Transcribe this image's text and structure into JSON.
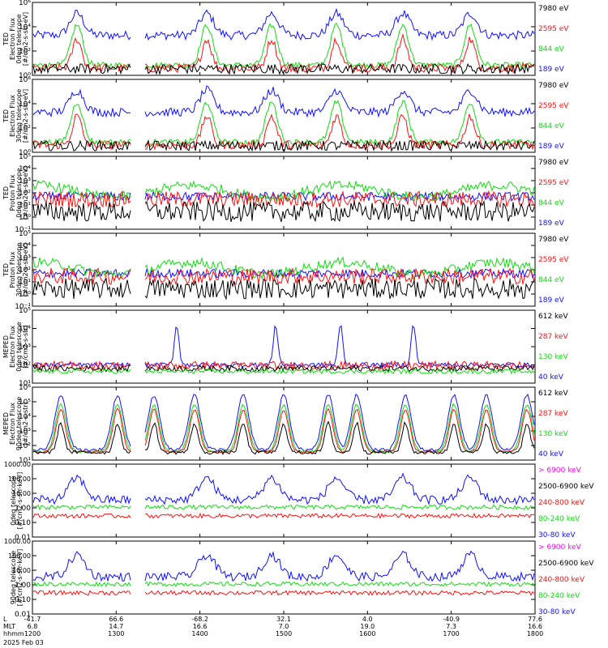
{
  "colors": {
    "black": "#000000",
    "blue": "#1010ff",
    "red": "#ff1010",
    "green": "#10dd10",
    "magenta": "#ff00ff"
  },
  "date_label": "2025 Feb 03",
  "x_axis": {
    "row_labels": [
      "L",
      "MLT",
      "hhmm"
    ],
    "ticks": [
      {
        "L": "-41.7",
        "MLT": "6.8",
        "hhmm": "1200"
      },
      {
        "L": "66.6",
        "MLT": "14.7",
        "hhmm": "1300"
      },
      {
        "L": "-68.2",
        "MLT": "16.6",
        "hhmm": "1400"
      },
      {
        "L": "32.1",
        "MLT": "7.0",
        "hhmm": "1500"
      },
      {
        "L": "4.0",
        "MLT": "19.0",
        "hhmm": "1600"
      },
      {
        "L": "-40.9",
        "MLT": "7.3",
        "hhmm": "1700"
      },
      {
        "L": "77.6",
        "MLT": "16.6",
        "hhmm": "1800"
      }
    ]
  },
  "chart_data": [
    {
      "type": "line",
      "ylabel": [
        "TED",
        "Electron Flux",
        "0deg telescope",
        "[#/cm2-s-str-eV]"
      ],
      "y_scale": "log",
      "ylim": [
        1,
        1000000.0
      ],
      "y_ticks": [
        "10⁰",
        "10²",
        "10⁴",
        "10⁶"
      ],
      "legend": [
        {
          "name": "7980 eV",
          "color": "black"
        },
        {
          "name": "2595 eV",
          "color": "red"
        },
        {
          "name": "844 eV",
          "color": "green"
        },
        {
          "name": "189 eV",
          "color": "blue"
        }
      ]
    },
    {
      "type": "line",
      "ylabel": [
        "TED",
        "Electron Flux",
        "30deg telescope",
        "[#/cm2-s-str-eV]"
      ],
      "y_scale": "log",
      "ylim": [
        1,
        1000000.0
      ],
      "y_ticks": [
        "10⁰",
        "10²",
        "10⁴",
        "10⁶"
      ],
      "legend": [
        {
          "name": "7980 eV",
          "color": "black"
        },
        {
          "name": "2595 eV",
          "color": "red"
        },
        {
          "name": "844 eV",
          "color": "green"
        },
        {
          "name": "189 eV",
          "color": "blue"
        }
      ]
    },
    {
      "type": "line",
      "ylabel": [
        "TED",
        "Proton Flux",
        "0deg telescope",
        "[#/cm2-s-str-eV]"
      ],
      "y_scale": "log",
      "ylim": [
        0.1,
        100000.0
      ],
      "y_ticks": [
        "10⁻¹",
        "10⁰",
        "10¹",
        "10²",
        "10³",
        "10⁴",
        "10⁵"
      ],
      "legend": [
        {
          "name": "7980 eV",
          "color": "black"
        },
        {
          "name": "2595 eV",
          "color": "red"
        },
        {
          "name": "844 eV",
          "color": "green"
        },
        {
          "name": "189 eV",
          "color": "blue"
        }
      ]
    },
    {
      "type": "line",
      "ylabel": [
        "TED",
        "Proton Flux",
        "30deg telescope",
        "[#/cm2-s-str-eV]"
      ],
      "y_scale": "log",
      "ylim": [
        0.1,
        100000.0
      ],
      "y_ticks": [
        "10⁻¹",
        "10⁰",
        "10¹",
        "10²",
        "10³",
        "10⁴",
        "10⁵"
      ],
      "legend": [
        {
          "name": "7980 eV",
          "color": "black"
        },
        {
          "name": "2595 eV",
          "color": "red"
        },
        {
          "name": "844 eV",
          "color": "green"
        },
        {
          "name": "189 eV",
          "color": "blue"
        }
      ]
    },
    {
      "type": "line",
      "ylabel": [
        "MEPED",
        "Electron Flux",
        "0deg telescope",
        "[#/cm2-s-str]"
      ],
      "y_scale": "log",
      "ylim": [
        10,
        100000.0
      ],
      "y_ticks": [
        "10¹",
        "10²",
        "10³",
        "10⁴",
        "10⁵"
      ],
      "legend": [
        {
          "name": "612 keV",
          "color": "black"
        },
        {
          "name": "287 keV",
          "color": "red"
        },
        {
          "name": "130 keV",
          "color": "green"
        },
        {
          "name": "40 keV",
          "color": "blue"
        }
      ]
    },
    {
      "type": "line",
      "ylabel": [
        "MEPED",
        "Electron Flux",
        "90deg telescope",
        "[#/cm2-s-str]"
      ],
      "y_scale": "log",
      "ylim": [
        10,
        1000000.0
      ],
      "y_ticks": [
        "10¹",
        "10²",
        "10³",
        "10⁴",
        "10⁵",
        "10⁶"
      ],
      "legend": [
        {
          "name": "612 keV",
          "color": "black"
        },
        {
          "name": "287 keV",
          "color": "red"
        },
        {
          "name": "130 keV",
          "color": "green"
        },
        {
          "name": "40 keV",
          "color": "blue"
        }
      ]
    },
    {
      "type": "line",
      "ylabel": [
        "0deg telescope",
        "[#/cm2-s-str-keV]"
      ],
      "y_scale": "log",
      "ylim": [
        0.01,
        1000
      ],
      "y_ticks": [
        "0.01",
        "0.10",
        "1.00",
        "10.00",
        "100.00",
        "1000.00"
      ],
      "legend": [
        {
          "name": "> 6900 keV",
          "color": "magenta"
        },
        {
          "name": "2500-6900 keV",
          "color": "black"
        },
        {
          "name": "240-800 keV",
          "color": "red"
        },
        {
          "name": "80-240 keV",
          "color": "green"
        },
        {
          "name": "30-80 keV",
          "color": "blue"
        }
      ]
    },
    {
      "type": "line",
      "ylabel": [
        "90deg telescope",
        "[#/cm2-s-str-keV]"
      ],
      "y_scale": "log",
      "ylim": [
        0.01,
        1000
      ],
      "y_ticks": [
        "0.01",
        "0.10",
        "1.00",
        "10.00",
        "100.00",
        "1000.00"
      ],
      "legend": [
        {
          "name": "> 6900 keV",
          "color": "magenta"
        },
        {
          "name": "2500-6900 keV",
          "color": "black"
        },
        {
          "name": "240-800 keV",
          "color": "red"
        },
        {
          "name": "80-240 keV",
          "color": "green"
        },
        {
          "name": "30-80 keV",
          "color": "blue"
        }
      ]
    }
  ]
}
